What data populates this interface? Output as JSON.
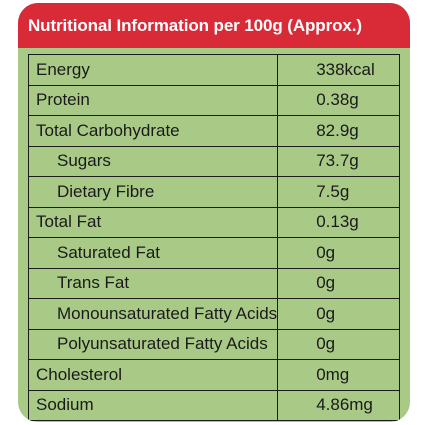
{
  "title": "Nutritional Information per 100g (Approx.)",
  "rows": [
    {
      "name": "Energy",
      "value": "338kcal"
    },
    {
      "name": "Protein",
      "value": "0.38g"
    },
    {
      "name": "Total Carbohydrate",
      "value": "82.9g"
    },
    {
      "name": "Sugars",
      "value": "73.7g"
    },
    {
      "name": "Dietary Fibre",
      "value": "7.5g"
    },
    {
      "name": "Total Fat",
      "value": "0.13g"
    },
    {
      "name": "Saturated Fat",
      "value": "0g"
    },
    {
      "name": "Trans Fat",
      "value": "0g"
    },
    {
      "name": "Monounsaturated Fatty Acids",
      "value": "0g"
    },
    {
      "name": "Polyunsaturated Fatty Acids",
      "value": "0g"
    },
    {
      "name": "Cholesterol",
      "value": "0mg"
    },
    {
      "name": "Sodium",
      "value": "4.86mg"
    }
  ],
  "colors": {
    "header_background": "#d92a37",
    "panel_background": "#a9ca86",
    "grid_lines": "#1c1c1c"
  }
}
